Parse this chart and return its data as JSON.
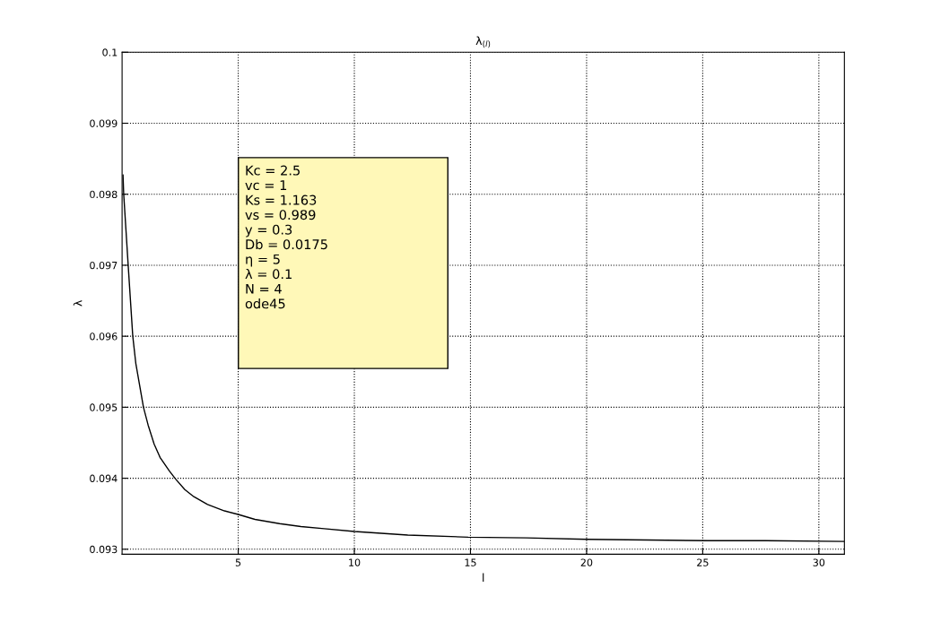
{
  "chart_data": {
    "type": "line",
    "title": "λ$_{(l)}$",
    "xlabel": "l",
    "ylabel": "λ",
    "x": [
      0.04,
      0.07,
      0.26,
      0.46,
      0.59,
      0.92,
      1.12,
      1.38,
      1.64,
      2.04,
      2.3,
      2.7,
      3.09,
      3.68,
      4.41,
      5,
      5.72,
      6.78,
      7.7,
      8.7,
      10,
      12.3,
      14.9,
      17.4,
      20,
      22.6,
      25.2,
      27.7,
      31.1
    ],
    "series": [
      {
        "color": "#000000",
        "values": [
          0.09827,
          0.098,
          0.09701,
          0.096,
          0.09562,
          0.095,
          0.09475,
          0.09448,
          0.09429,
          0.0941,
          0.09399,
          0.09384,
          0.09374,
          0.09363,
          0.09354,
          0.09349,
          0.09342,
          0.09336,
          0.09332,
          0.09329,
          0.09325,
          0.0932,
          0.09317,
          0.09316,
          0.09314,
          0.09313,
          0.09312,
          0.09312,
          0.09311
        ]
      }
    ],
    "xlim": [
      0,
      31.1
    ],
    "ylim": [
      0.09293,
      0.1
    ],
    "xticks": [
      5,
      10,
      15,
      20,
      25,
      30
    ],
    "yticks": [
      0.093,
      0.094,
      0.095,
      0.096,
      0.097,
      0.098,
      0.099,
      0.1
    ],
    "grid": true,
    "line_style": "solid",
    "marker": "none",
    "annotations": [
      "Kc = 2.5",
      "vc = 1",
      "Ks = 1.163",
      "vs = 0.989",
      "y = 0.3",
      "Db = 0.0175",
      "η = 5",
      "λ = 0.1",
      "N = 4",
      "ode45"
    ]
  }
}
